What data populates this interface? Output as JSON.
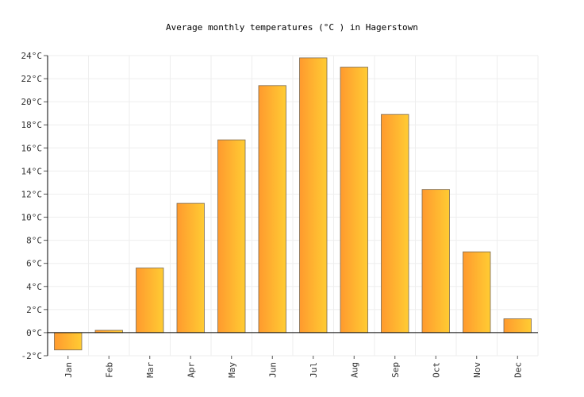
{
  "chart_data": {
    "type": "bar",
    "title": "Average monthly temperatures (°C ) in Hagerstown",
    "xlabel": "",
    "ylabel": "",
    "categories": [
      "Jan",
      "Feb",
      "Mar",
      "Apr",
      "May",
      "Jun",
      "Jul",
      "Aug",
      "Sep",
      "Oct",
      "Nov",
      "Dec"
    ],
    "values": [
      -1.5,
      0.2,
      5.6,
      11.2,
      16.7,
      21.4,
      23.8,
      23.0,
      18.9,
      12.4,
      7.0,
      1.2
    ],
    "ylim": [
      -2,
      24
    ],
    "yticks": [
      -2,
      0,
      2,
      4,
      6,
      8,
      10,
      12,
      14,
      16,
      18,
      20,
      22,
      24
    ],
    "ytick_labels": [
      "-2°C",
      "0°C",
      "2°C",
      "4°C",
      "6°C",
      "8°C",
      "10°C",
      "12°C",
      "14°C",
      "16°C",
      "18°C",
      "20°C",
      "22°C",
      "24°C"
    ],
    "grid": true,
    "legend": "none",
    "colors": {
      "bar_start": "#ff9a2e",
      "bar_end": "#ffcc33",
      "bar_border": "#7a6a55",
      "grid": "#eeeeee",
      "axis": "#000000"
    }
  }
}
